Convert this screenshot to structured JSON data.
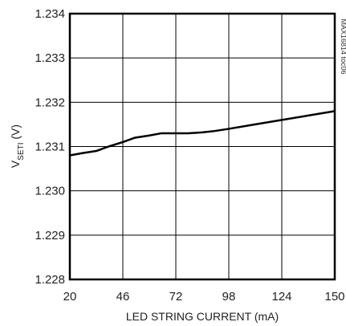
{
  "chart_data": {
    "type": "line",
    "title": "",
    "xlabel": "LED STRING CURRENT (mA)",
    "ylabel_main": "V",
    "ylabel_sub": "SETI",
    "ylabel_unit": " (V)",
    "side_note": "MAX16814 toc06",
    "xlim": [
      20,
      150
    ],
    "ylim": [
      1.228,
      1.234
    ],
    "x_ticks": [
      "20",
      "46",
      "72",
      "98",
      "124",
      "150"
    ],
    "y_ticks": [
      "1.228",
      "1.229",
      "1.230",
      "1.231",
      "1.232",
      "1.233",
      "1.234"
    ],
    "grid": true,
    "series": [
      {
        "x": [
          20,
          26,
          33,
          39,
          46,
          52,
          59,
          65,
          72,
          78,
          85,
          91,
          98,
          111,
          124,
          137,
          150
        ],
        "y": [
          1.2308,
          1.23085,
          1.2309,
          1.231,
          1.2311,
          1.2312,
          1.23125,
          1.2313,
          1.2313,
          1.2313,
          1.23132,
          1.23135,
          1.2314,
          1.2315,
          1.2316,
          1.2317,
          1.2318
        ]
      }
    ]
  }
}
